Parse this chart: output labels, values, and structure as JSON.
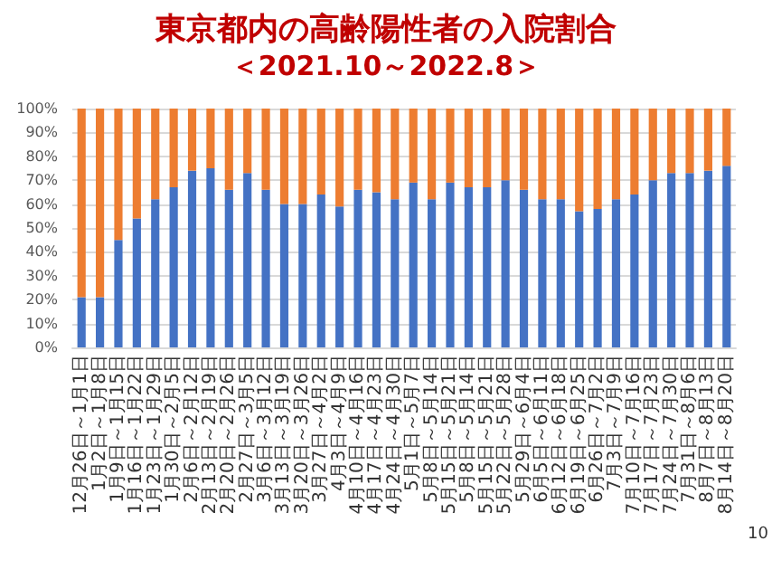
{
  "chart_data": {
    "type": "bar",
    "title": "東京都内の高齢陽性者の入院割合",
    "subtitle": "＜2021.10～2022.8＞",
    "categories": [
      "12月26日～1月1日",
      "1月2日～1月8日",
      "1月9日～1月15日",
      "1月16日～1月22日",
      "1月23日～1月29日",
      "1月30日～2月5日",
      "2月6日～2月12日",
      "2月13日～2月19日",
      "2月20日～2月26日",
      "2月27日～3月5日",
      "3月6日～3月12日",
      "3月13日～3月19日",
      "3月20日～3月26日",
      "3月27日～4月2日",
      "4月3日～4月9日",
      "4月10日～4月16日",
      "4月17日～4月23日",
      "4月24日～4月30日",
      "5月1日～5月7日",
      "5月8日～5月14日",
      "5月15日～5月21日",
      "5月8日～5月14日",
      "5月15日～5月21日",
      "5月22日～5月28日",
      "5月29日～6月4日",
      "6月5日～6月11日",
      "6月12日～6月18日",
      "6月19日～6月25日",
      "6月26日～7月2日",
      "7月3日～7月9日",
      "7月10日～7月16日",
      "7月17日～7月23日",
      "7月24日～7月30日",
      "7月31日～8月6日",
      "8月7日～8月13日",
      "8月14日～8月20日"
    ],
    "stacked": true,
    "series": [
      {
        "color": "#4472c4",
        "values": [
          21,
          21,
          45,
          54,
          62,
          67,
          74,
          75,
          66,
          73,
          66,
          60,
          60,
          64,
          59,
          66,
          65,
          62,
          69,
          62,
          69,
          67,
          67,
          70,
          66,
          62,
          62,
          57,
          58,
          62,
          64,
          70,
          73,
          73,
          74,
          76
        ]
      },
      {
        "color": "#ed7d31",
        "values": [
          79,
          79,
          55,
          46,
          38,
          33,
          26,
          25,
          34,
          27,
          34,
          40,
          40,
          36,
          41,
          34,
          35,
          38,
          31,
          38,
          31,
          33,
          33,
          30,
          34,
          38,
          38,
          43,
          42,
          38,
          36,
          30,
          27,
          27,
          26,
          24
        ]
      }
    ],
    "ylim": [
      0,
      100
    ],
    "yticks": [
      {
        "value": 0,
        "label": "0%"
      },
      {
        "value": 10,
        "label": "10%"
      },
      {
        "value": 20,
        "label": "20%"
      },
      {
        "value": 30,
        "label": "30%"
      },
      {
        "value": 40,
        "label": "40%"
      },
      {
        "value": 50,
        "label": "50%"
      },
      {
        "value": 60,
        "label": "60%"
      },
      {
        "value": 70,
        "label": "70%"
      },
      {
        "value": 80,
        "label": "80%"
      },
      {
        "value": 90,
        "label": "90%"
      },
      {
        "value": 100,
        "label": "100%"
      }
    ],
    "grid": "y",
    "annotations": [
      "10"
    ]
  }
}
